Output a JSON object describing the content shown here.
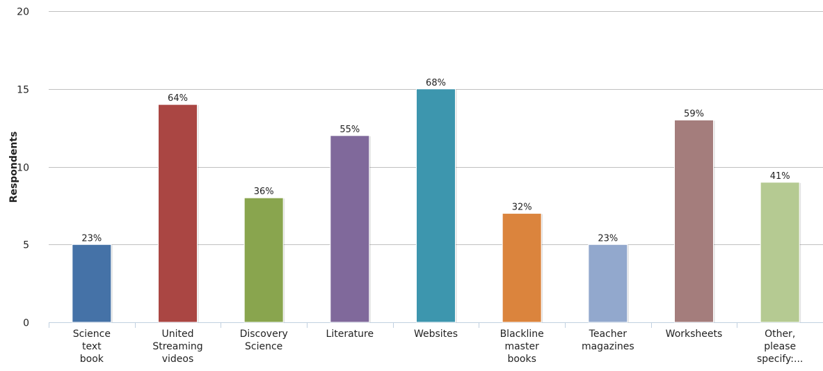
{
  "chart_data": {
    "type": "bar",
    "categories": [
      [
        "Science",
        "text",
        "book"
      ],
      [
        "United",
        "Streaming",
        "videos"
      ],
      [
        "Discovery",
        "Science"
      ],
      [
        "Literature"
      ],
      [
        "Websites"
      ],
      [
        "Blackline",
        "master",
        "books"
      ],
      [
        "Teacher",
        "magazines"
      ],
      [
        "Worksheets"
      ],
      [
        "Other,",
        "please",
        "specify:..."
      ]
    ],
    "values": [
      5,
      14,
      8,
      12,
      15,
      7,
      5,
      13,
      9
    ],
    "data_labels": [
      "23%",
      "64%",
      "36%",
      "55%",
      "68%",
      "32%",
      "23%",
      "59%",
      "41%"
    ],
    "colors": [
      "#4572a7",
      "#aa4643",
      "#89a54e",
      "#80699b",
      "#3d96ae",
      "#db843d",
      "#92a8cd",
      "#a47d7c",
      "#b5ca92"
    ],
    "ylabel": "Respondents",
    "xlabel": "",
    "ylim": [
      0,
      20
    ],
    "yticks": [
      0,
      5,
      10,
      15,
      20
    ],
    "grid": true,
    "legend": "none"
  }
}
